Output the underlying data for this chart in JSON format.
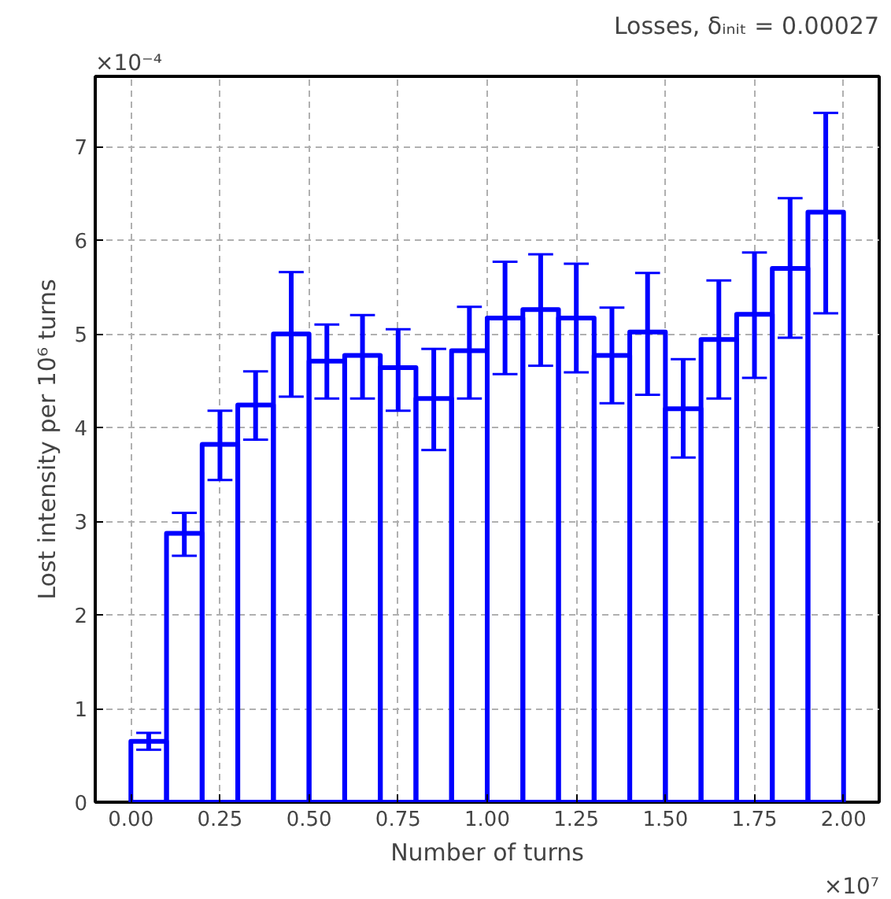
{
  "chart_data": {
    "type": "histogram",
    "title": "Losses, δᵢₙᵢₜ = 0.00027",
    "xlabel": "Number of turns",
    "ylabel": "Lost intensity per 10⁶ turns",
    "bins": [
      0,
      0.1,
      0.2,
      0.3,
      0.4,
      0.5,
      0.6,
      0.7,
      0.8,
      0.9,
      1.0,
      1.1,
      1.2,
      1.3,
      1.4,
      1.5,
      1.6,
      1.7,
      1.8,
      1.9,
      2.0
    ],
    "values": [
      0.65,
      2.87,
      3.82,
      4.24,
      5.0,
      4.71,
      4.77,
      4.64,
      4.31,
      4.82,
      5.17,
      5.26,
      5.17,
      4.77,
      5.02,
      4.2,
      4.94,
      5.21,
      5.7,
      6.3
    ],
    "errors": [
      [
        0.56,
        0.74
      ],
      [
        2.63,
        3.09
      ],
      [
        3.44,
        4.18
      ],
      [
        3.87,
        4.6
      ],
      [
        4.33,
        5.66
      ],
      [
        4.31,
        5.1
      ],
      [
        4.31,
        5.2
      ],
      [
        4.18,
        5.05
      ],
      [
        3.76,
        4.84
      ],
      [
        4.31,
        5.29
      ],
      [
        4.57,
        5.77
      ],
      [
        4.66,
        5.85
      ],
      [
        4.59,
        5.75
      ],
      [
        4.26,
        5.28
      ],
      [
        4.35,
        5.65
      ],
      [
        3.68,
        4.73
      ],
      [
        4.31,
        5.57
      ],
      [
        4.53,
        5.87
      ],
      [
        4.96,
        6.45
      ],
      [
        5.22,
        7.36
      ]
    ],
    "color": "#0000ff",
    "grid": true,
    "xlim": [
      -0.1,
      2.1
    ],
    "ylim": [
      0,
      7.75
    ],
    "xticks": [
      {
        "value": 0,
        "label": "0.00"
      },
      0.25,
      {
        "value": 0.5,
        "label": "0.50"
      },
      0.75,
      {
        "value": 1.0,
        "label": "1.00"
      },
      1.25,
      {
        "value": 1.5,
        "label": "1.50"
      },
      1.75,
      {
        "value": 2.0,
        "label": "2.00"
      }
    ],
    "yticks": [
      0,
      1,
      2,
      3,
      4,
      5,
      6,
      7
    ],
    "annotations": [
      "×10⁻⁴",
      "×10⁷"
    ]
  }
}
